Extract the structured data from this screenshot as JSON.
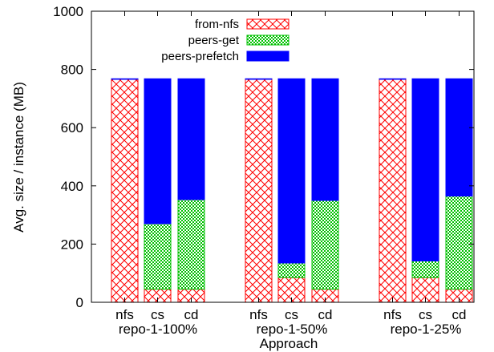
{
  "chart_data": {
    "type": "bar",
    "stacked": true,
    "title": "",
    "xlabel": "Approach",
    "ylabel": "Avg. size / instance (MB)",
    "ylim": [
      0,
      1000
    ],
    "yticks": [
      0,
      200,
      400,
      600,
      800,
      1000
    ],
    "grid": false,
    "legend_position": "top-center",
    "groups": [
      {
        "name": "repo-1-100%",
        "bars": [
          {
            "label": "nfs",
            "from_nfs": 766,
            "peers_get": 0,
            "peers_prefetch": 2
          },
          {
            "label": "cs",
            "from_nfs": 45,
            "peers_get": 225,
            "peers_prefetch": 498
          },
          {
            "label": "cd",
            "from_nfs": 45,
            "peers_get": 308,
            "peers_prefetch": 415
          }
        ]
      },
      {
        "name": "repo-1-50%",
        "bars": [
          {
            "label": "nfs",
            "from_nfs": 766,
            "peers_get": 0,
            "peers_prefetch": 2
          },
          {
            "label": "cs",
            "from_nfs": 85,
            "peers_get": 50,
            "peers_prefetch": 633
          },
          {
            "label": "cd",
            "from_nfs": 45,
            "peers_get": 305,
            "peers_prefetch": 418
          }
        ]
      },
      {
        "name": "repo-1-25%",
        "bars": [
          {
            "label": "nfs",
            "from_nfs": 766,
            "peers_get": 0,
            "peers_prefetch": 2
          },
          {
            "label": "cs",
            "from_nfs": 85,
            "peers_get": 57,
            "peers_prefetch": 626
          },
          {
            "label": "cd",
            "from_nfs": 45,
            "peers_get": 320,
            "peers_prefetch": 403
          }
        ]
      }
    ],
    "series": [
      {
        "key": "from_nfs",
        "name": "from-nfs",
        "color": "#ff0000",
        "pattern": "crosshatch"
      },
      {
        "key": "peers_get",
        "name": "peers-get",
        "color": "#00c000",
        "pattern": "dots"
      },
      {
        "key": "peers_prefetch",
        "name": "peers-prefetch",
        "color": "#0000ff",
        "pattern": "solid"
      }
    ]
  }
}
